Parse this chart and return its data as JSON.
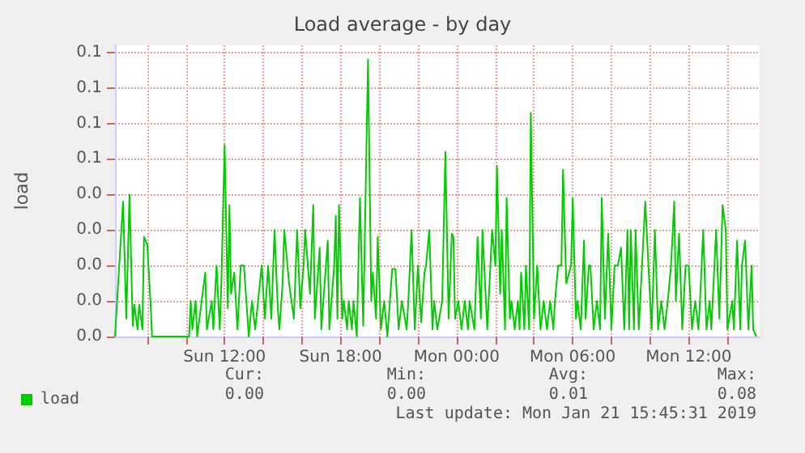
{
  "chart_data": {
    "type": "line",
    "title": "Load average - by day",
    "ylabel": "load",
    "x": [
      "2019-01-20T06:20",
      "2019-01-20T06:45",
      "2019-01-20T06:55",
      "2019-01-20T07:05",
      "2019-01-20T07:15",
      "2019-01-20T07:20",
      "2019-01-20T07:30",
      "2019-01-20T07:35",
      "2019-01-20T07:45",
      "2019-01-20T07:50",
      "2019-01-20T08:00",
      "2019-01-20T08:10",
      "2019-01-20T08:15",
      "2019-01-20T10:10",
      "2019-01-20T10:15",
      "2019-01-20T10:20",
      "2019-01-20T10:30",
      "2019-01-20T10:35",
      "2019-01-20T11:00",
      "2019-01-20T11:05",
      "2019-01-20T11:20",
      "2019-01-20T11:25",
      "2019-01-20T11:35",
      "2019-01-20T11:45",
      "2019-01-20T11:50",
      "2019-01-20T12:00",
      "2019-01-20T12:10",
      "2019-01-20T12:15",
      "2019-01-20T12:20",
      "2019-01-20T12:30",
      "2019-01-20T12:40",
      "2019-01-20T12:50",
      "2019-01-20T13:00",
      "2019-01-20T13:15",
      "2019-01-20T13:25",
      "2019-01-20T13:35",
      "2019-01-20T13:55",
      "2019-01-20T14:05",
      "2019-01-20T14:15",
      "2019-01-20T14:25",
      "2019-01-20T14:35",
      "2019-01-20T14:45",
      "2019-01-20T14:50",
      "2019-01-20T15:00",
      "2019-01-20T15:05",
      "2019-01-20T15:20",
      "2019-01-20T15:35",
      "2019-01-20T15:45",
      "2019-01-20T15:55",
      "2019-01-20T16:05",
      "2019-01-20T16:10",
      "2019-01-20T16:25",
      "2019-01-20T16:35",
      "2019-01-20T16:40",
      "2019-01-20T16:55",
      "2019-01-20T17:00",
      "2019-01-20T17:20",
      "2019-01-20T17:25",
      "2019-01-20T17:40",
      "2019-01-20T17:45",
      "2019-01-20T17:50",
      "2019-01-20T17:55",
      "2019-01-20T18:05",
      "2019-01-20T18:10",
      "2019-01-20T18:20",
      "2019-01-20T18:25",
      "2019-01-20T18:35",
      "2019-01-20T18:40",
      "2019-01-20T18:50",
      "2019-01-20T19:00",
      "2019-01-20T19:10",
      "2019-01-20T19:25",
      "2019-01-20T19:35",
      "2019-01-20T19:40",
      "2019-01-20T19:50",
      "2019-01-20T19:55",
      "2019-01-20T20:05",
      "2019-01-20T20:15",
      "2019-01-20T20:25",
      "2019-01-20T20:40",
      "2019-01-20T20:50",
      "2019-01-20T21:00",
      "2019-01-20T21:10",
      "2019-01-20T21:25",
      "2019-01-20T21:30",
      "2019-01-20T21:40",
      "2019-01-20T21:50",
      "2019-01-20T22:00",
      "2019-01-20T22:10",
      "2019-01-20T22:20",
      "2019-01-20T22:25",
      "2019-01-20T22:35",
      "2019-01-20T22:45",
      "2019-01-20T22:50",
      "2019-01-20T23:00",
      "2019-01-20T23:15",
      "2019-01-20T23:25",
      "2019-01-20T23:35",
      "2019-01-20T23:45",
      "2019-01-20T23:50",
      "2019-01-20T23:55",
      "2019-01-21T00:05",
      "2019-01-21T00:15",
      "2019-01-21T00:25",
      "2019-01-21T00:35",
      "2019-01-21T00:40",
      "2019-01-21T00:55",
      "2019-01-21T01:05",
      "2019-01-21T01:15",
      "2019-01-21T01:20",
      "2019-01-21T01:35",
      "2019-01-21T01:50",
      "2019-01-21T02:00",
      "2019-01-21T02:05",
      "2019-01-21T02:15",
      "2019-01-21T02:20",
      "2019-01-21T02:30",
      "2019-01-21T02:35",
      "2019-01-21T02:45",
      "2019-01-21T02:50",
      "2019-01-21T03:00",
      "2019-01-21T03:10",
      "2019-01-21T03:15",
      "2019-01-21T03:20",
      "2019-01-21T03:30",
      "2019-01-21T03:35",
      "2019-01-21T03:45",
      "2019-01-21T03:50",
      "2019-01-21T04:00",
      "2019-01-21T04:10",
      "2019-01-21T04:20",
      "2019-01-21T04:30",
      "2019-01-21T04:40",
      "2019-01-21T04:50",
      "2019-01-21T05:00",
      "2019-01-21T05:05",
      "2019-01-21T05:15",
      "2019-01-21T05:25",
      "2019-01-21T05:30",
      "2019-01-21T05:40",
      "2019-01-21T05:55",
      "2019-01-21T06:00",
      "2019-01-21T06:10",
      "2019-01-21T06:15",
      "2019-01-21T06:25",
      "2019-01-21T06:35",
      "2019-01-21T06:40",
      "2019-01-21T06:50",
      "2019-01-21T06:55",
      "2019-01-21T07:05",
      "2019-01-21T07:15",
      "2019-01-21T07:25",
      "2019-01-21T07:30",
      "2019-01-21T07:40",
      "2019-01-21T07:50",
      "2019-01-21T08:00",
      "2019-01-21T08:10",
      "2019-01-21T08:20",
      "2019-01-21T08:30",
      "2019-01-21T08:40",
      "2019-01-21T08:50",
      "2019-01-21T08:55",
      "2019-01-21T09:00",
      "2019-01-21T09:10",
      "2019-01-21T09:15",
      "2019-01-21T09:25",
      "2019-01-21T09:35",
      "2019-01-21T09:45",
      "2019-01-21T09:55",
      "2019-01-21T10:05",
      "2019-01-21T10:15",
      "2019-01-21T10:25",
      "2019-01-21T10:35",
      "2019-01-21T10:45",
      "2019-01-21T10:55",
      "2019-01-21T11:05",
      "2019-01-21T11:15",
      "2019-01-21T11:20",
      "2019-01-21T11:30",
      "2019-01-21T11:40",
      "2019-01-21T11:50",
      "2019-01-21T12:00",
      "2019-01-21T12:10",
      "2019-01-21T12:20",
      "2019-01-21T12:30",
      "2019-01-21T12:35",
      "2019-01-21T12:45",
      "2019-01-21T12:55",
      "2019-01-21T13:05",
      "2019-01-21T13:10",
      "2019-01-21T13:25",
      "2019-01-21T13:35",
      "2019-01-21T13:45",
      "2019-01-21T13:55",
      "2019-01-21T14:00",
      "2019-01-21T14:15",
      "2019-01-21T14:20",
      "2019-01-21T14:30",
      "2019-01-21T14:40",
      "2019-01-21T14:45",
      "2019-01-21T14:55",
      "2019-01-21T15:05",
      "2019-01-21T15:15",
      "2019-01-21T15:20",
      "2019-01-21T15:30"
    ],
    "series": [
      {
        "name": "load",
        "color": "#00cc00",
        "values": [
          0,
          0.038,
          0.005,
          0.04,
          0.003,
          0.009,
          0.002,
          0.009,
          0.002,
          0.028,
          0.026,
          0.01,
          0,
          0,
          0.01,
          0.002,
          0.01,
          0,
          0.018,
          0.002,
          0.01,
          0.002,
          0.02,
          0.002,
          0.015,
          0.054,
          0.008,
          0.037,
          0.012,
          0.018,
          0.002,
          0.02,
          0.02,
          0,
          0.01,
          0.002,
          0.02,
          0.005,
          0.02,
          0.005,
          0.03,
          0.008,
          0.002,
          0.015,
          0.03,
          0.015,
          0.005,
          0.03,
          0.008,
          0.02,
          0.03,
          0.012,
          0.037,
          0.005,
          0.025,
          0.002,
          0.027,
          0.002,
          0.02,
          0.034,
          0.005,
          0.037,
          0.005,
          0.01,
          0.002,
          0.01,
          0.002,
          0.01,
          0,
          0.039,
          0.003,
          0.078,
          0.01,
          0.018,
          0.005,
          0.028,
          0.002,
          0.01,
          0,
          0.019,
          0.019,
          0.002,
          0.01,
          0.002,
          0.01,
          0.03,
          0.002,
          0.02,
          0.004,
          0.018,
          0.02,
          0.03,
          0.002,
          0.01,
          0.002,
          0.01,
          0.052,
          0.005,
          0.029,
          0.028,
          0.005,
          0.01,
          0.002,
          0.01,
          0.002,
          0.01,
          0.002,
          0.028,
          0.005,
          0.03,
          0.002,
          0.03,
          0.02,
          0.048,
          0.012,
          0.03,
          0.002,
          0.039,
          0.005,
          0.01,
          0.002,
          0.01,
          0.002,
          0.018,
          0.002,
          0.02,
          0.002,
          0.063,
          0.005,
          0.02,
          0.002,
          0.01,
          0.002,
          0.01,
          0.002,
          0.01,
          0.02,
          0.02,
          0.047,
          0.015,
          0.02,
          0.039,
          0.005,
          0.01,
          0.002,
          0.027,
          0.005,
          0.02,
          0.02,
          0.002,
          0.01,
          0.002,
          0.039,
          0.005,
          0.029,
          0.002,
          0.02,
          0.02,
          0.025,
          0.002,
          0.03,
          0.002,
          0.03,
          0.002,
          0.03,
          0.002,
          0.02,
          0.038,
          0.02,
          0.002,
          0.03,
          0.002,
          0.01,
          0.002,
          0.01,
          0.02,
          0.038,
          0.01,
          0.029,
          0.002,
          0.02,
          0.02,
          0.002,
          0.01,
          0.002,
          0.01,
          0.03,
          0.002,
          0.01,
          0.002,
          0.03,
          0.005,
          0.037,
          0.03,
          0.002,
          0.01,
          0.002,
          0.027,
          0.002,
          0.02,
          0.027,
          0.002,
          0.02,
          0.002,
          0
        ]
      }
    ],
    "xlim": [
      "2019-01-20T06:20",
      "2019-01-21T15:40"
    ],
    "xticks": [
      {
        "value": "2019-01-20T08:00",
        "label": null
      },
      {
        "value": "2019-01-20T10:00",
        "label": null
      },
      {
        "value": "2019-01-20T12:00",
        "label": "Sun 12:00"
      },
      {
        "value": "2019-01-20T14:00",
        "label": null
      },
      {
        "value": "2019-01-20T16:00",
        "label": null
      },
      {
        "value": "2019-01-20T18:00",
        "label": "Sun 18:00"
      },
      {
        "value": "2019-01-20T20:00",
        "label": null
      },
      {
        "value": "2019-01-20T22:00",
        "label": null
      },
      {
        "value": "2019-01-21T00:00",
        "label": "Mon 00:00"
      },
      {
        "value": "2019-01-21T02:00",
        "label": null
      },
      {
        "value": "2019-01-21T04:00",
        "label": null
      },
      {
        "value": "2019-01-21T06:00",
        "label": "Mon 06:00"
      },
      {
        "value": "2019-01-21T08:00",
        "label": null
      },
      {
        "value": "2019-01-21T10:00",
        "label": null
      },
      {
        "value": "2019-01-21T12:00",
        "label": "Mon 12:00"
      },
      {
        "value": "2019-01-21T14:00",
        "label": null
      }
    ],
    "ylim": [
      0,
      0.082
    ],
    "yticks": [
      {
        "value": 0,
        "label": "0.0"
      },
      {
        "value": 0.01,
        "label": "0.0"
      },
      {
        "value": 0.02,
        "label": "0.0"
      },
      {
        "value": 0.03,
        "label": "0.0"
      },
      {
        "value": 0.04,
        "label": "0.0"
      },
      {
        "value": 0.05,
        "label": "0.1"
      },
      {
        "value": 0.06,
        "label": "0.1"
      },
      {
        "value": 0.07,
        "label": "0.1"
      },
      {
        "value": 0.08,
        "label": "0.1"
      }
    ],
    "grid": true,
    "legend": "bottom left",
    "marker": "none",
    "line_style": "solid",
    "annotations": [
      "Cur:",
      "0.00",
      "Min:",
      "0.00",
      "Avg:",
      "0.01",
      "Max:",
      "0.08",
      "Last update: Mon Jan 21 15:45:31 2019"
    ]
  }
}
